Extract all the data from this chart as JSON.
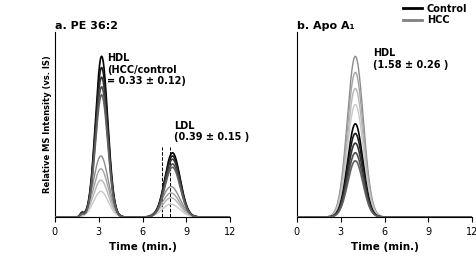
{
  "panel_a_title": "a. PE 36:2",
  "panel_b_title": "b. Apo A₁",
  "xlabel": "Time (min.)",
  "ylabel": "Relative MS Intensity (vs. IS)",
  "xlim": [
    0,
    12
  ],
  "xticks": [
    0,
    3,
    6,
    9,
    12
  ],
  "legend_control": "Control",
  "legend_hcc": "HCC",
  "dashed_line_x": [
    7.3,
    7.9
  ],
  "annotation_a_hdl": "HDL\n(HCC/control\n= 0.33 ± 0.12)",
  "annotation_a_ldl": "LDL\n(0.39 ± 0.15 )",
  "annotation_b_hdl": "HDL\n(1.58 ± 0.26 )",
  "figsize": [
    4.77,
    2.68
  ],
  "dpi": 100
}
